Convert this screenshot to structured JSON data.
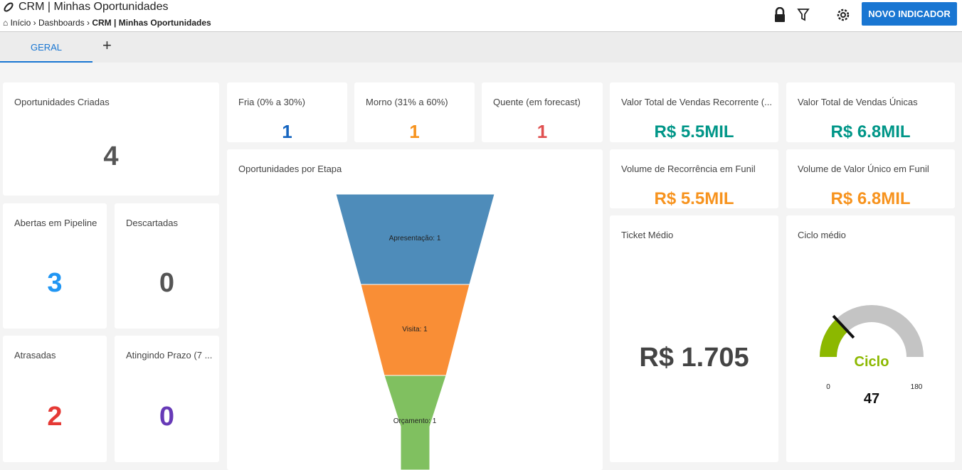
{
  "header": {
    "title": "CRM | Minhas Oportunidades",
    "breadcrumb": [
      "Início",
      "Dashboards",
      "CRM | Minhas Oportunidades"
    ],
    "button": "NOVO INDICADOR"
  },
  "tabs": [
    "GERAL"
  ],
  "cards": [
    {
      "title": "Oportunidades Criadas",
      "value": 4,
      "color": "#555555"
    },
    {
      "title": "Abertas em Pipeline",
      "value": 3,
      "color": "#2196f3"
    },
    {
      "title": "Descartadas",
      "value": 0,
      "color": "#555555"
    },
    {
      "title": "Atrasadas",
      "value": 2,
      "color": "#e53935"
    },
    {
      "title": "Atingindo Prazo (7 ...",
      "value": 0,
      "color": "#673ab7"
    },
    {
      "title": "Fria (0% a 30%)",
      "value": 1,
      "color": "#1565c0"
    },
    {
      "title": "Morno (31% a 60%)",
      "value": 1,
      "color": "#f7931e"
    },
    {
      "title": "Quente (em forecast)",
      "value": 1,
      "color": "#e05050"
    },
    {
      "title": "Valor Total de Vendas Recorrente (...",
      "value": "R$ 5.5MIL",
      "color": "#009688"
    },
    {
      "title": "Valor Total de Vendas Únicas",
      "value": "R$ 6.8MIL",
      "color": "#009688"
    },
    {
      "title": "Volume de Recorrência em Funil",
      "value": "R$ 5.5MIL",
      "color": "#f7931e"
    },
    {
      "title": "Volume de Valor Único em Funil",
      "value": "R$ 6.8MIL",
      "color": "#f7931e"
    },
    {
      "title": "Ticket Médio",
      "value": "R$ 1.705",
      "color": "#444444"
    }
  ],
  "funnel": {
    "title": "Oportunidades por Etapa",
    "stages": [
      {
        "label": "Apresentação: 1",
        "value": 1,
        "color": "#4e8cba"
      },
      {
        "label": "Visita: 1",
        "value": 1,
        "color": "#f98e36"
      },
      {
        "label": "Orçamento: 1",
        "value": 1,
        "color": "#80c060"
      }
    ]
  },
  "gauge": {
    "title": "Ciclo médio",
    "label": "Ciclo",
    "value": 47,
    "min": 0,
    "max": 180,
    "color": "#8cb800"
  }
}
